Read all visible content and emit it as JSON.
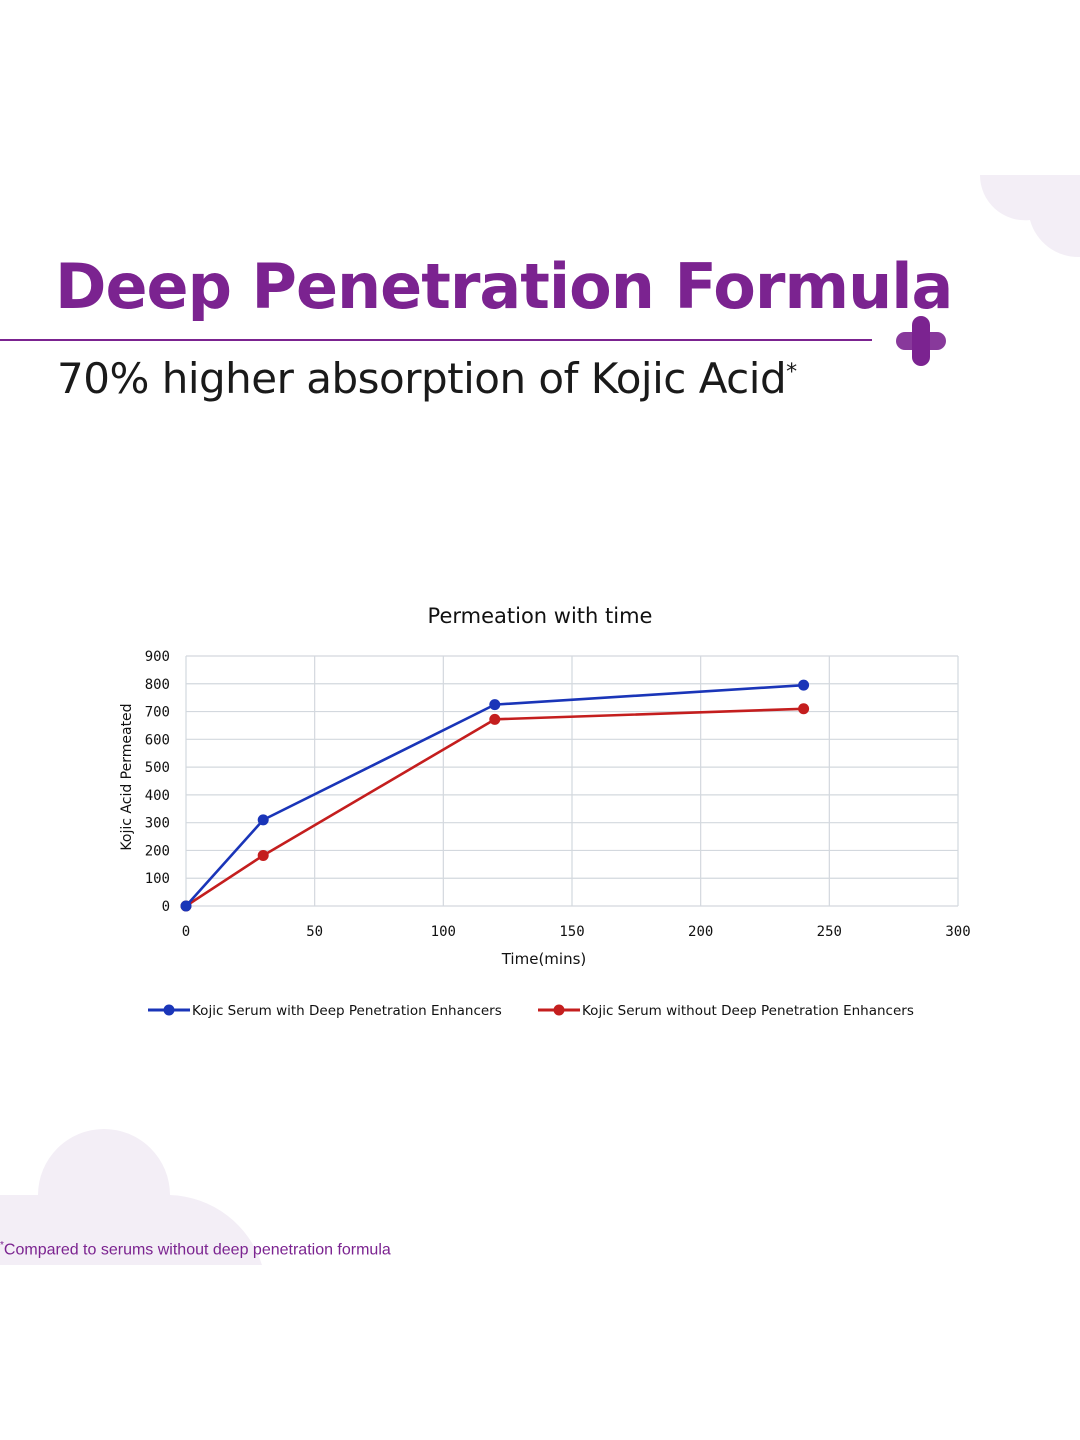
{
  "header": {
    "title": "Deep Penetration Formula",
    "subtitle": "70% higher absorption of Kojic Acid",
    "subtitle_mark": "*"
  },
  "footnote": {
    "mark": "*",
    "text": "Compared to serums without deep penetration formula"
  },
  "colors": {
    "brand": "#7B2390",
    "brand_light": "#A45DB8",
    "decor": "#F3EEF6",
    "text": "#1A1A1A",
    "footnote": "#7B2390"
  },
  "icons": [
    "plus-cross-icon"
  ],
  "chart_data": {
    "type": "line",
    "title": "Permeation with time",
    "xlabel": "Time(mins)",
    "ylabel": "Kojic Acid Permeated",
    "xlim": [
      0,
      300
    ],
    "ylim": [
      0,
      900
    ],
    "xticks": [
      0,
      50,
      100,
      150,
      200,
      250,
      300
    ],
    "yticks": [
      0,
      100,
      200,
      300,
      400,
      500,
      600,
      700,
      800,
      900
    ],
    "grid": true,
    "legend": "bottom",
    "series": [
      {
        "name": "Kojic Serum with Deep Penetration Enhancers",
        "color": "#1A35B8",
        "x": [
          0,
          30,
          120,
          240
        ],
        "y": [
          0,
          310,
          725,
          795
        ]
      },
      {
        "name": "Kojic Serum without Deep Penetration Enhancers",
        "color": "#C41E1E",
        "x": [
          0,
          30,
          120,
          240
        ],
        "y": [
          0,
          182,
          672,
          710
        ]
      }
    ]
  }
}
